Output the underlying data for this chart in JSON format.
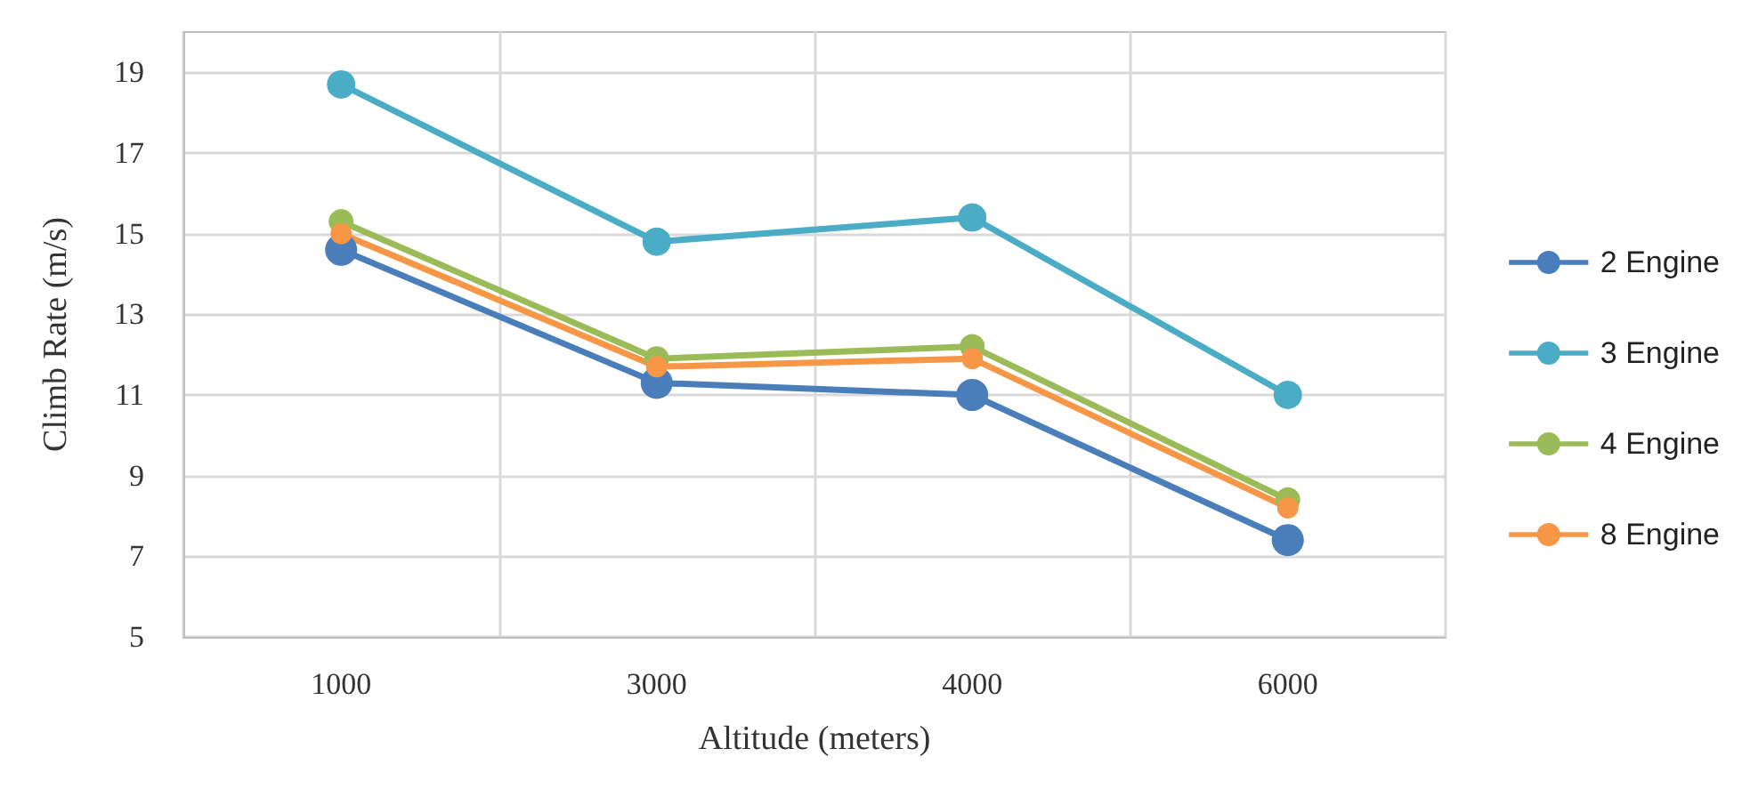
{
  "chart_data": {
    "type": "line",
    "xlabel": "Altitude (meters)",
    "ylabel": "Climb Rate (m/s)",
    "categories": [
      "1000",
      "3000",
      "4000",
      "6000"
    ],
    "series": [
      {
        "name": "2 Engine",
        "color": "#4a7ebb",
        "values": [
          14.6,
          11.3,
          11.0,
          7.4
        ]
      },
      {
        "name": "3 Engine",
        "color": "#4bacc6",
        "values": [
          18.7,
          14.8,
          15.4,
          11.0
        ]
      },
      {
        "name": "4 Engine",
        "color": "#9bbb59",
        "values": [
          15.3,
          11.9,
          12.2,
          8.4
        ]
      },
      {
        "name": "8 Engine",
        "color": "#f79646",
        "values": [
          15.0,
          11.7,
          11.9,
          8.2
        ]
      }
    ],
    "ylim": [
      5,
      20
    ],
    "yticks": [
      5,
      7,
      9,
      11,
      13,
      15,
      17,
      19
    ],
    "grid": true,
    "legend": "right",
    "marker": "circle",
    "line_style": "solid"
  }
}
